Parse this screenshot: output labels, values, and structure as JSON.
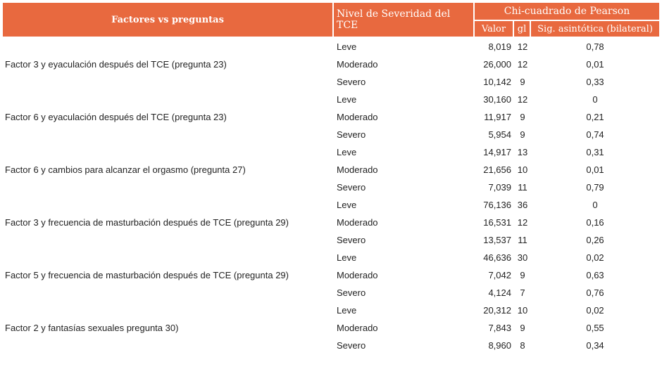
{
  "header": {
    "factores": "Factores vs preguntas",
    "nivel": "Nivel de Severidad del TCE",
    "chi": "Chi-cuadrado de Pearson",
    "valor": "Valor",
    "gl": "gl",
    "sig": "Sig. asintótica (bilateral)"
  },
  "groups": [
    {
      "factor": "Factor 3 y eyaculación después del TCE (pregunta 23)",
      "rows": [
        {
          "nivel": "Leve",
          "valor": "8,019",
          "gl": "12",
          "sig": "0,78"
        },
        {
          "nivel": "Moderado",
          "valor": "26,000",
          "gl": "12",
          "sig": "0,01"
        },
        {
          "nivel": "Severo",
          "valor": "10,142",
          "gl": "9",
          "sig": "0,33"
        }
      ]
    },
    {
      "factor": "Factor 6 y eyaculación después del TCE (pregunta 23)",
      "rows": [
        {
          "nivel": "Leve",
          "valor": "30,160",
          "gl": "12",
          "sig": "0"
        },
        {
          "nivel": "Moderado",
          "valor": "11,917",
          "gl": "9",
          "sig": "0,21"
        },
        {
          "nivel": "Severo",
          "valor": "5,954",
          "gl": "9",
          "sig": "0,74"
        }
      ]
    },
    {
      "factor": "Factor 6 y cambios para alcanzar el orgasmo (pregunta 27)",
      "rows": [
        {
          "nivel": "Leve",
          "valor": "14,917",
          "gl": "13",
          "sig": "0,31"
        },
        {
          "nivel": "Moderado",
          "valor": "21,656",
          "gl": "10",
          "sig": "0,01"
        },
        {
          "nivel": "Severo",
          "valor": "7,039",
          "gl": "11",
          "sig": "0,79"
        }
      ]
    },
    {
      "factor": "Factor 3 y frecuencia de masturbación después de TCE (pregunta 29)",
      "rows": [
        {
          "nivel": "Leve",
          "valor": "76,136",
          "gl": "36",
          "sig": "0"
        },
        {
          "nivel": "Moderado",
          "valor": "16,531",
          "gl": "12",
          "sig": "0,16"
        },
        {
          "nivel": "Severo",
          "valor": "13,537",
          "gl": "11",
          "sig": "0,26"
        }
      ]
    },
    {
      "factor": "Factor 5 y frecuencia de masturbación después de TCE (pregunta 29)",
      "rows": [
        {
          "nivel": "Leve",
          "valor": "46,636",
          "gl": "30",
          "sig": "0,02"
        },
        {
          "nivel": "Moderado",
          "valor": "7,042",
          "gl": "9",
          "sig": "0,63"
        },
        {
          "nivel": "Severo",
          "valor": "4,124",
          "gl": "7",
          "sig": "0,76"
        }
      ]
    },
    {
      "factor": "Factor 2 y fantasías sexuales pregunta 30)",
      "rows": [
        {
          "nivel": "Leve",
          "valor": "20,312",
          "gl": "10",
          "sig": "0,02"
        },
        {
          "nivel": "Moderado",
          "valor": "7,843",
          "gl": "9",
          "sig": "0,55"
        },
        {
          "nivel": "Severo",
          "valor": "8,960",
          "gl": "8",
          "sig": "0,34"
        }
      ]
    }
  ]
}
